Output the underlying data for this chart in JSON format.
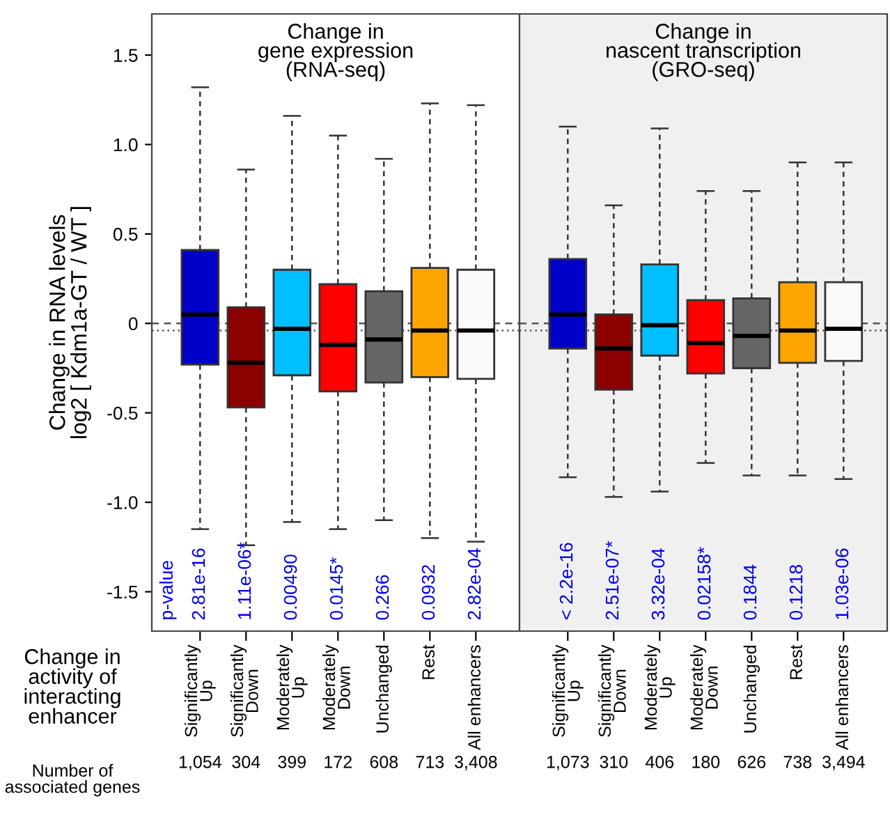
{
  "chart_data": [
    {
      "type": "box",
      "title": "Change in\ngene expression\n(RNA-seq)",
      "ylabel": "Change in RNA levels\nlog2 [ Kdm1a-GT / WT ]",
      "xlabel": "Change in\nactivity of\ninteracting\nenhancer",
      "categories": [
        "Significantly\nUp",
        "Significantly\nDown",
        "Moderately\nUp",
        "Moderately\nDown",
        "Unchanged",
        "Rest",
        "All enhancers"
      ],
      "colors": [
        "#0000c8",
        "#8b0000",
        "#00bfff",
        "#ff0000",
        "#666666",
        "#ffa500",
        "#fafafa"
      ],
      "boxes": [
        {
          "low": -1.15,
          "q1": -0.23,
          "median": 0.05,
          "q3": 0.41,
          "high": 1.32
        },
        {
          "low": -1.24,
          "q1": -0.47,
          "median": -0.22,
          "q3": 0.09,
          "high": 0.86
        },
        {
          "low": -1.11,
          "q1": -0.29,
          "median": -0.03,
          "q3": 0.3,
          "high": 1.16
        },
        {
          "low": -1.15,
          "q1": -0.38,
          "median": -0.12,
          "q3": 0.22,
          "high": 1.05
        },
        {
          "low": -1.1,
          "q1": -0.33,
          "median": -0.09,
          "q3": 0.18,
          "high": 0.92
        },
        {
          "low": -1.2,
          "q1": -0.3,
          "median": -0.04,
          "q3": 0.31,
          "high": 1.23
        },
        {
          "low": -1.22,
          "q1": -0.31,
          "median": -0.04,
          "q3": 0.3,
          "high": 1.22
        }
      ],
      "ylim": [
        -1.72,
        1.73
      ],
      "yticks": [
        1.5,
        {
          "value": 1,
          "label": "1.0"
        },
        0.5,
        0,
        -0.5,
        {
          "value": -1,
          "label": "-1.0"
        },
        -1.5
      ],
      "ref_lines": [
        {
          "axis": "y",
          "value": 0,
          "line_style": "dashed",
          "color": "#555555"
        },
        {
          "axis": "y",
          "value": -0.04,
          "line_style": "dotted",
          "color": "#555555"
        }
      ],
      "annotations": [
        "p-value",
        "Number of\nassociated genes",
        "1,054",
        "304",
        "399",
        "172",
        "608",
        "713",
        "3,408",
        "2.81e-16",
        "1.11e-06*",
        "0.00490",
        "0.0145*",
        "0.266",
        "0.0932",
        "2.82e-04"
      ]
    },
    {
      "type": "box",
      "title": "Change in\nnascent transcription\n(GRO-seq)",
      "categories": [
        "Significantly\nUp",
        "Significantly\nDown",
        "Moderately\nUp",
        "Moderately\nDown",
        "Unchanged",
        "Rest",
        "All enhancers"
      ],
      "colors": [
        "#0000c8",
        "#8b0000",
        "#00bfff",
        "#ff0000",
        "#666666",
        "#ffa500",
        "#fafafa"
      ],
      "boxes": [
        {
          "low": -0.86,
          "q1": -0.14,
          "median": 0.05,
          "q3": 0.36,
          "high": 1.1
        },
        {
          "low": -0.97,
          "q1": -0.37,
          "median": -0.14,
          "q3": 0.05,
          "high": 0.66
        },
        {
          "low": -0.94,
          "q1": -0.18,
          "median": -0.01,
          "q3": 0.33,
          "high": 1.09
        },
        {
          "low": -0.78,
          "q1": -0.28,
          "median": -0.11,
          "q3": 0.13,
          "high": 0.74
        },
        {
          "low": -0.85,
          "q1": -0.25,
          "median": -0.07,
          "q3": 0.14,
          "high": 0.74
        },
        {
          "low": -0.85,
          "q1": -0.22,
          "median": -0.04,
          "q3": 0.23,
          "high": 0.9
        },
        {
          "low": -0.87,
          "q1": -0.21,
          "median": -0.03,
          "q3": 0.23,
          "high": 0.9
        }
      ],
      "ylim": [
        -1.72,
        1.73
      ],
      "tick_labels": "x",
      "ref_lines": [
        {
          "axis": "y",
          "value": 0,
          "line_style": "dashed",
          "color": "#555555"
        },
        {
          "axis": "y",
          "value": -0.04,
          "line_style": "dotted",
          "color": "#555555"
        }
      ],
      "annotations": [
        "1,073",
        "310",
        "406",
        "180",
        "626",
        "738",
        "3,494",
        "< 2.2e-16",
        "2.51e-07*",
        "3.32e-04",
        "0.02158*",
        "0.1844",
        "0.1218",
        "1.03e-06"
      ]
    }
  ]
}
